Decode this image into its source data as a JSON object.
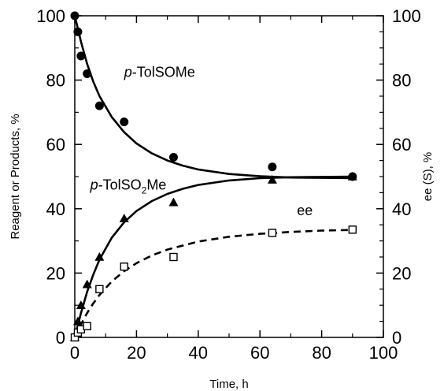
{
  "chart_data": {
    "type": "scatter",
    "xlabel": "Time, h",
    "ylabel": "Reagent or Products, %",
    "y2label": "ee (S), %",
    "xlim": [
      0,
      100
    ],
    "ylim": [
      0,
      100
    ],
    "y2lim": [
      0,
      100
    ],
    "x_ticks": [
      0,
      20,
      40,
      60,
      80,
      100
    ],
    "y_ticks": [
      0,
      20,
      40,
      60,
      80,
      100
    ],
    "y2_ticks": [
      0,
      20,
      40,
      60,
      80,
      100
    ],
    "grid": false,
    "series": [
      {
        "name": "p-TolSOMe",
        "marker": "filled-circle",
        "curve": "solid",
        "points": [
          [
            0,
            100
          ],
          [
            1,
            95
          ],
          [
            2,
            87.5
          ],
          [
            4,
            82
          ],
          [
            8,
            72
          ],
          [
            16,
            67
          ],
          [
            32,
            56
          ],
          [
            64,
            53
          ],
          [
            90,
            50
          ]
        ],
        "fit": [
          [
            0,
            100
          ],
          [
            2,
            92
          ],
          [
            4,
            85
          ],
          [
            6,
            79.5
          ],
          [
            8,
            75
          ],
          [
            12,
            68.5
          ],
          [
            16,
            63.8
          ],
          [
            20,
            60.3
          ],
          [
            25,
            57.2
          ],
          [
            30,
            55
          ],
          [
            35,
            53.4
          ],
          [
            40,
            52.2
          ],
          [
            50,
            50.8
          ],
          [
            60,
            50.1
          ],
          [
            70,
            49.7
          ],
          [
            80,
            49.6
          ],
          [
            90,
            49.5
          ]
        ]
      },
      {
        "name": "p-TolSO2Me",
        "marker": "filled-triangle",
        "curve": "solid",
        "points": [
          [
            0,
            0
          ],
          [
            1,
            5
          ],
          [
            2,
            10
          ],
          [
            4,
            16.5
          ],
          [
            8,
            25
          ],
          [
            16,
            37
          ],
          [
            32,
            42
          ],
          [
            64,
            49
          ],
          [
            90,
            50
          ]
        ],
        "fit": [
          [
            0,
            0
          ],
          [
            1,
            3.8
          ],
          [
            2,
            7.5
          ],
          [
            4,
            14.2
          ],
          [
            6,
            19.5
          ],
          [
            8,
            24.2
          ],
          [
            12,
            31
          ],
          [
            16,
            35.8
          ],
          [
            20,
            39.3
          ],
          [
            25,
            42.4
          ],
          [
            30,
            44.6
          ],
          [
            35,
            46.2
          ],
          [
            40,
            47.4
          ],
          [
            50,
            48.8
          ],
          [
            60,
            49.5
          ],
          [
            70,
            49.8
          ],
          [
            80,
            49.9
          ],
          [
            90,
            50
          ]
        ]
      },
      {
        "name": "ee",
        "marker": "open-square",
        "curve": "dashed",
        "axis": "right",
        "points": [
          [
            0,
            0
          ],
          [
            1,
            1.5
          ],
          [
            2,
            2.5
          ],
          [
            4,
            3.5
          ],
          [
            8,
            15
          ],
          [
            16,
            22
          ],
          [
            32,
            25
          ],
          [
            64,
            32.5
          ],
          [
            90,
            33.5
          ]
        ],
        "fit": [
          [
            0,
            0
          ],
          [
            2,
            4
          ],
          [
            4,
            7.6
          ],
          [
            6,
            10.6
          ],
          [
            8,
            13.2
          ],
          [
            12,
            17.4
          ],
          [
            16,
            20.6
          ],
          [
            20,
            23.1
          ],
          [
            25,
            25.5
          ],
          [
            30,
            27.3
          ],
          [
            40,
            29.8
          ],
          [
            50,
            31.3
          ],
          [
            60,
            32.2
          ],
          [
            70,
            32.8
          ],
          [
            80,
            33.2
          ],
          [
            90,
            33.4
          ]
        ]
      }
    ],
    "annotations": [
      {
        "text_plain": "p-TolSOMe",
        "italic": "p",
        "rest": "-TolSOMe",
        "at": [
          16,
          81
        ]
      },
      {
        "text_plain": "p-TolSO2Me",
        "italic": "p",
        "rest": "-TolSO",
        "sub": "2",
        "tail": "Me",
        "at": [
          5,
          46
        ]
      },
      {
        "text_plain": "ee",
        "at": [
          72,
          38
        ]
      }
    ]
  }
}
